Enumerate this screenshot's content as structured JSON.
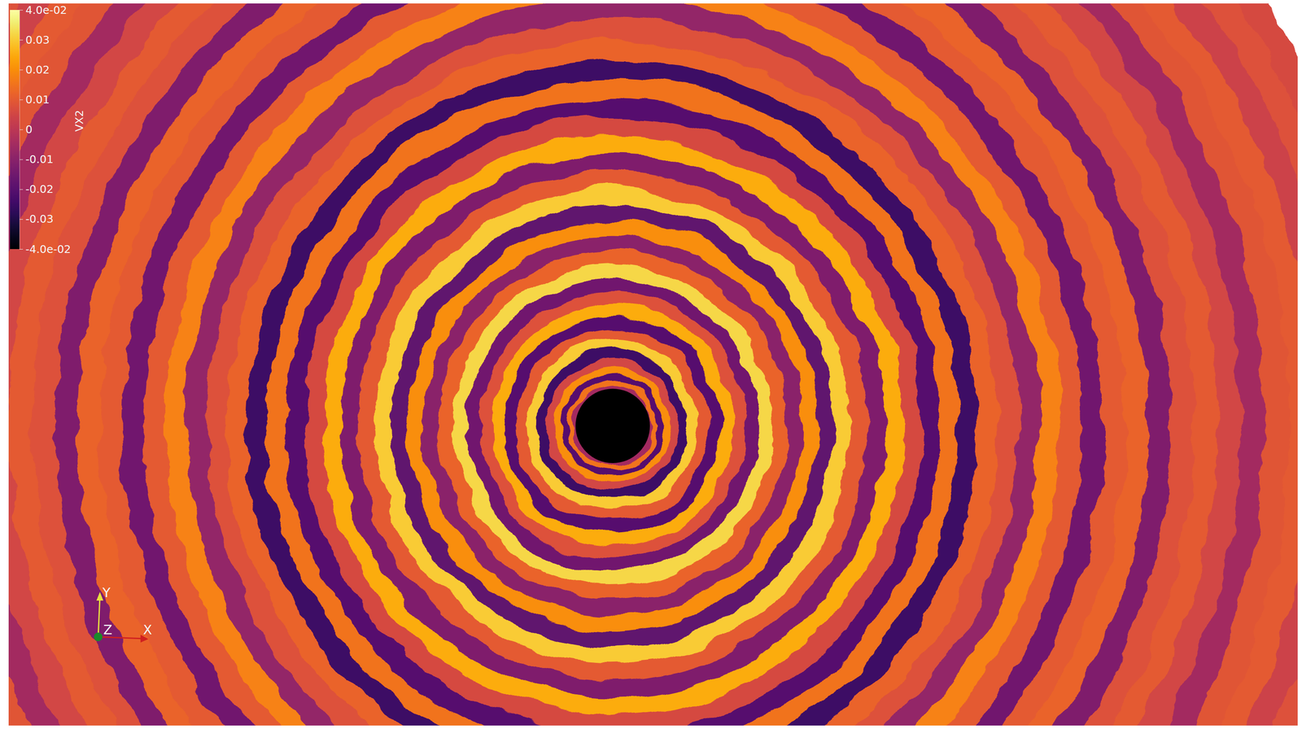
{
  "chart_data": {
    "type": "heatmap",
    "values": [
      -0.005,
      0.015,
      -0.02,
      0.02,
      0.005,
      -0.025,
      0.03,
      0.01,
      -0.02,
      0.025,
      0.008,
      -0.015,
      0.032,
      0.012,
      -0.01,
      0.02,
      -0.018,
      0.03,
      0.01,
      -0.012,
      0.025,
      0.006,
      -0.02,
      0.015,
      -0.025,
      0.012,
      0.008,
      -0.008,
      0.018,
      0.01,
      -0.015,
      0.01,
      0.012,
      -0.012,
      0.008,
      0.01,
      0.005,
      -0.005,
      0.009,
      0.01,
      0.004,
      0.008,
      0.006
    ],
    "colorbar": {
      "title": "VX2",
      "range": [
        -0.04,
        0.04
      ],
      "ticks": [
        {
          "value": 0.04,
          "label": "4.0e-02"
        },
        0.03,
        0.02,
        0.01,
        0,
        -0.01,
        -0.02,
        -0.03,
        {
          "value": -0.04,
          "label": "-4.0e-02"
        }
      ]
    },
    "annotations": [
      "Y",
      "Z",
      "X"
    ]
  }
}
